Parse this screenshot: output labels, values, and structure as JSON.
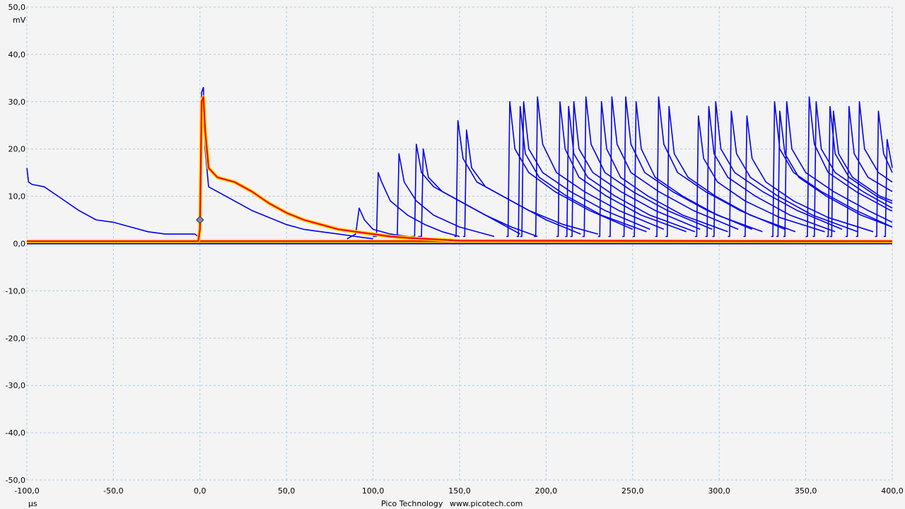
{
  "footer": {
    "brand": "Pico Technology",
    "website": "www.picotech.com"
  },
  "chart_data": {
    "type": "line",
    "title": "",
    "xlabel": "μs",
    "ylabel": "mV",
    "xlim": [
      -100,
      400
    ],
    "ylim": [
      -50,
      50
    ],
    "x_ticks": [
      "-100,0",
      "-50,0",
      "0,0",
      "50,0",
      "100,0",
      "150,0",
      "200,0",
      "250,0",
      "300,0",
      "350,0",
      "400,0"
    ],
    "y_ticks": [
      "50,0",
      "40,0",
      "30,0",
      "20,0",
      "10,0",
      "0,0",
      "-10,0",
      "-20,0",
      "-30,0",
      "-40,0",
      "-50,0"
    ],
    "grid": true,
    "display_mode": "persistence",
    "baseline_mv": 0.5,
    "trigger_marker": {
      "x": 0,
      "y": 5
    },
    "colors": {
      "trace": "#0000ee",
      "persistence_hot": "#ff0000",
      "persistence_warm": "#ffd800",
      "grid": "#a8cbe0",
      "background": "#f4f4f4"
    },
    "series": [
      {
        "x": [
          -100,
          -99,
          -97,
          -90,
          -80,
          -70,
          -60,
          -50,
          -40,
          -30,
          -20,
          -10,
          -3,
          -1,
          0,
          1,
          2,
          3,
          5,
          10,
          20,
          30,
          40,
          50,
          60,
          70,
          80,
          90,
          100
        ],
        "y": [
          16,
          13,
          12.5,
          12,
          9.5,
          7,
          5,
          4.5,
          3.5,
          2.5,
          2,
          2,
          2,
          1.5,
          5,
          32,
          33,
          20,
          12,
          11,
          9,
          7,
          5.5,
          4,
          3,
          2.5,
          2,
          1.5,
          1
        ]
      },
      {
        "x": [
          -100,
          -1,
          0,
          1,
          2,
          3,
          5,
          10,
          20,
          30,
          40,
          50,
          60,
          70,
          80,
          90,
          100,
          110,
          120,
          130,
          140,
          150,
          400
        ],
        "y": [
          0.5,
          0.5,
          3,
          30,
          31,
          24,
          16,
          14,
          13,
          11,
          8.5,
          6.5,
          5,
          4,
          3,
          2.5,
          2,
          1.5,
          1.2,
          1,
          0.8,
          0.6,
          0.5
        ]
      },
      {
        "x": [
          85,
          90,
          92,
          95,
          100,
          110,
          120,
          130
        ],
        "y": [
          1,
          2,
          7.5,
          5,
          3,
          2,
          1.5,
          1
        ]
      },
      {
        "x": [
          100,
          102,
          103,
          105,
          110,
          120,
          130,
          140,
          150
        ],
        "y": [
          1.5,
          1.5,
          15,
          13,
          9,
          6,
          4,
          2.5,
          1.5
        ]
      },
      {
        "x": [
          112,
          114,
          115,
          118,
          125,
          135,
          150,
          170
        ],
        "y": [
          1.5,
          1.5,
          19,
          13,
          9,
          6,
          3.5,
          1.5
        ]
      },
      {
        "x": [
          122,
          124,
          125,
          128,
          135,
          150,
          165,
          180,
          195
        ],
        "y": [
          1.5,
          1.5,
          21,
          15,
          12,
          9,
          6,
          3.5,
          1.5
        ]
      },
      {
        "x": [
          126,
          128,
          129,
          132,
          140,
          155,
          170,
          185
        ],
        "y": [
          1.5,
          1.5,
          20,
          14,
          11,
          8,
          5,
          2
        ]
      },
      {
        "x": [
          147,
          148,
          149,
          152,
          160,
          175,
          190,
          210,
          230
        ],
        "y": [
          1.5,
          1.5,
          26,
          18,
          13,
          10,
          7,
          4,
          2
        ]
      },
      {
        "x": [
          152,
          153,
          154,
          157,
          165,
          180,
          200,
          220
        ],
        "y": [
          1.5,
          1.5,
          24,
          16,
          12,
          9,
          5,
          2
        ]
      },
      {
        "x": [
          177,
          178,
          179,
          182,
          190,
          205,
          225,
          250
        ],
        "y": [
          1.5,
          1.5,
          30,
          20,
          15,
          11,
          7,
          3
        ]
      },
      {
        "x": [
          183,
          184,
          185,
          188,
          196,
          212,
          232,
          258
        ],
        "y": [
          1.5,
          1.5,
          29,
          19,
          14,
          10,
          6,
          2.5
        ]
      },
      {
        "x": [
          185,
          186,
          187,
          190,
          198,
          214,
          234,
          260
        ],
        "y": [
          1.5,
          1.5,
          30,
          20,
          15,
          11,
          7,
          3
        ]
      },
      {
        "x": [
          193,
          194,
          195,
          198,
          206,
          222,
          242,
          268
        ],
        "y": [
          1.5,
          1.5,
          31,
          21,
          15,
          11,
          7,
          3
        ]
      },
      {
        "x": [
          206,
          207,
          208,
          211,
          219,
          235,
          255,
          281
        ],
        "y": [
          1.5,
          1.5,
          30,
          20,
          14,
          10,
          6,
          2.5
        ]
      },
      {
        "x": [
          211,
          212,
          213,
          216,
          224,
          240,
          260,
          286
        ],
        "y": [
          1.5,
          1.5,
          29,
          19,
          14,
          10,
          6,
          2.5
        ]
      },
      {
        "x": [
          214,
          215,
          216,
          219,
          227,
          243,
          263,
          289
        ],
        "y": [
          1.5,
          1.5,
          30,
          20,
          15,
          11,
          7,
          3
        ]
      },
      {
        "x": [
          221,
          222,
          223,
          226,
          234,
          250,
          270,
          296
        ],
        "y": [
          1.5,
          1.5,
          31,
          21,
          15,
          11,
          7,
          3
        ]
      },
      {
        "x": [
          230,
          231,
          232,
          235,
          243,
          259,
          279,
          305
        ],
        "y": [
          1.5,
          1.5,
          30,
          20,
          14,
          10,
          6,
          2.5
        ]
      },
      {
        "x": [
          236,
          237,
          238,
          241,
          249,
          265,
          285,
          311
        ],
        "y": [
          1.5,
          1.5,
          31,
          21,
          15,
          11,
          7,
          3
        ]
      },
      {
        "x": [
          244,
          245,
          246,
          249,
          257,
          273,
          293,
          319
        ],
        "y": [
          1.5,
          1.5,
          31,
          21,
          15,
          11,
          7,
          3
        ]
      },
      {
        "x": [
          250,
          251,
          252,
          255,
          263,
          279,
          299,
          325
        ],
        "y": [
          1.5,
          1.5,
          30,
          20,
          14,
          10,
          6,
          2.5
        ]
      },
      {
        "x": [
          263,
          264,
          265,
          268,
          276,
          292,
          312,
          338
        ],
        "y": [
          1.5,
          1.5,
          31,
          21,
          15,
          11,
          7,
          3
        ]
      },
      {
        "x": [
          269,
          270,
          271,
          274,
          282,
          298,
          318,
          344
        ],
        "y": [
          1.5,
          1.5,
          29,
          19,
          14,
          10,
          6,
          2.5
        ]
      },
      {
        "x": [
          286,
          287,
          288,
          291,
          299,
          315,
          335,
          361
        ],
        "y": [
          1.5,
          1.5,
          27,
          18,
          13,
          9,
          5.5,
          2.5
        ]
      },
      {
        "x": [
          292,
          293,
          294,
          297,
          305,
          321,
          341,
          367
        ],
        "y": [
          1.5,
          1.5,
          29,
          19,
          14,
          10,
          6,
          2.5
        ]
      },
      {
        "x": [
          296,
          297,
          298,
          301,
          309,
          325,
          345,
          371
        ],
        "y": [
          1.5,
          1.5,
          30,
          20,
          15,
          11,
          7,
          3
        ]
      },
      {
        "x": [
          305,
          306,
          307,
          310,
          318,
          334,
          354,
          380
        ],
        "y": [
          1.5,
          1.5,
          28,
          19,
          14,
          10,
          6,
          2.5
        ]
      },
      {
        "x": [
          314,
          315,
          316,
          319,
          327,
          343,
          363,
          389
        ],
        "y": [
          1.5,
          1.5,
          27,
          18,
          13,
          9,
          5.5,
          2.5
        ]
      },
      {
        "x": [
          330,
          331,
          332,
          335,
          343,
          359,
          379,
          400
        ],
        "y": [
          1.5,
          1.5,
          30,
          20,
          15,
          11,
          7,
          3.5
        ]
      },
      {
        "x": [
          333,
          334,
          335,
          338,
          346,
          362,
          382,
          400
        ],
        "y": [
          1.5,
          1.5,
          28,
          19,
          14,
          10,
          6,
          3.5
        ]
      },
      {
        "x": [
          337,
          338,
          339,
          342,
          350,
          366,
          386,
          400
        ],
        "y": [
          1.5,
          1.5,
          30,
          20,
          15,
          11,
          7,
          4.5
        ]
      },
      {
        "x": [
          350,
          351,
          352,
          355,
          363,
          379,
          399,
          400
        ],
        "y": [
          1.5,
          1.5,
          31,
          21,
          15,
          11,
          7,
          7
        ]
      },
      {
        "x": [
          354,
          355,
          356,
          359,
          367,
          383,
          400
        ],
        "y": [
          1.5,
          1.5,
          30,
          20,
          15,
          11,
          7.5
        ]
      },
      {
        "x": [
          362,
          363,
          364,
          367,
          375,
          391,
          400
        ],
        "y": [
          1.5,
          1.5,
          29,
          19,
          14,
          10,
          8.5
        ]
      },
      {
        "x": [
          364,
          365,
          366,
          369,
          377,
          393,
          400
        ],
        "y": [
          1.5,
          1.5,
          28,
          19,
          14,
          10,
          9
        ]
      },
      {
        "x": [
          373,
          374,
          375,
          378,
          386,
          400
        ],
        "y": [
          1.5,
          1.5,
          29,
          19,
          14,
          11
        ]
      },
      {
        "x": [
          379,
          380,
          381,
          384,
          392,
          400
        ],
        "y": [
          1.5,
          1.5,
          30,
          20,
          15,
          13
        ]
      },
      {
        "x": [
          390,
          391,
          392,
          395,
          400
        ],
        "y": [
          1.5,
          1.5,
          28,
          19,
          15
        ]
      },
      {
        "x": [
          395,
          396,
          397,
          400
        ],
        "y": [
          1.5,
          1.5,
          22,
          16
        ]
      }
    ]
  }
}
